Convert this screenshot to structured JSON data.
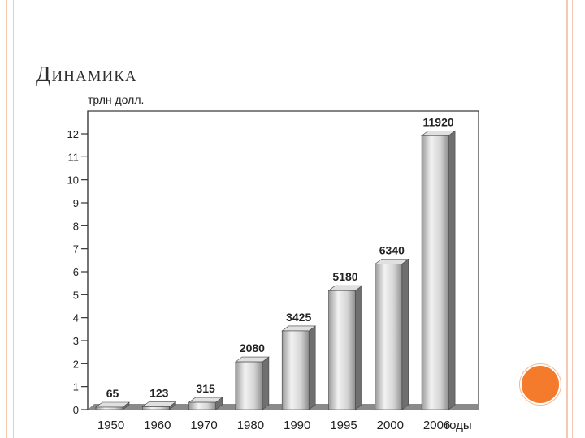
{
  "slide": {
    "title": "Динамика",
    "accent_color": "#f47a2c",
    "frame_color": "#f6c8b3"
  },
  "chart_data": {
    "type": "bar",
    "title": "",
    "ylabel": "трлн долл.",
    "xlabel": "годы",
    "categories": [
      "1950",
      "1960",
      "1970",
      "1980",
      "1990",
      "1995",
      "2000",
      "2006"
    ],
    "values": [
      65,
      123,
      315,
      2080,
      3425,
      5180,
      6340,
      11920
    ],
    "data_labels": [
      "65",
      "123",
      "315",
      "2080",
      "3425",
      "5180",
      "6340",
      "11920"
    ],
    "y_ticks": [
      "0",
      "1",
      "2",
      "3",
      "4",
      "5",
      "6",
      "7",
      "8",
      "9",
      "10",
      "11",
      "12"
    ],
    "ylim": [
      0,
      12
    ],
    "grid": false,
    "legend": "none"
  }
}
